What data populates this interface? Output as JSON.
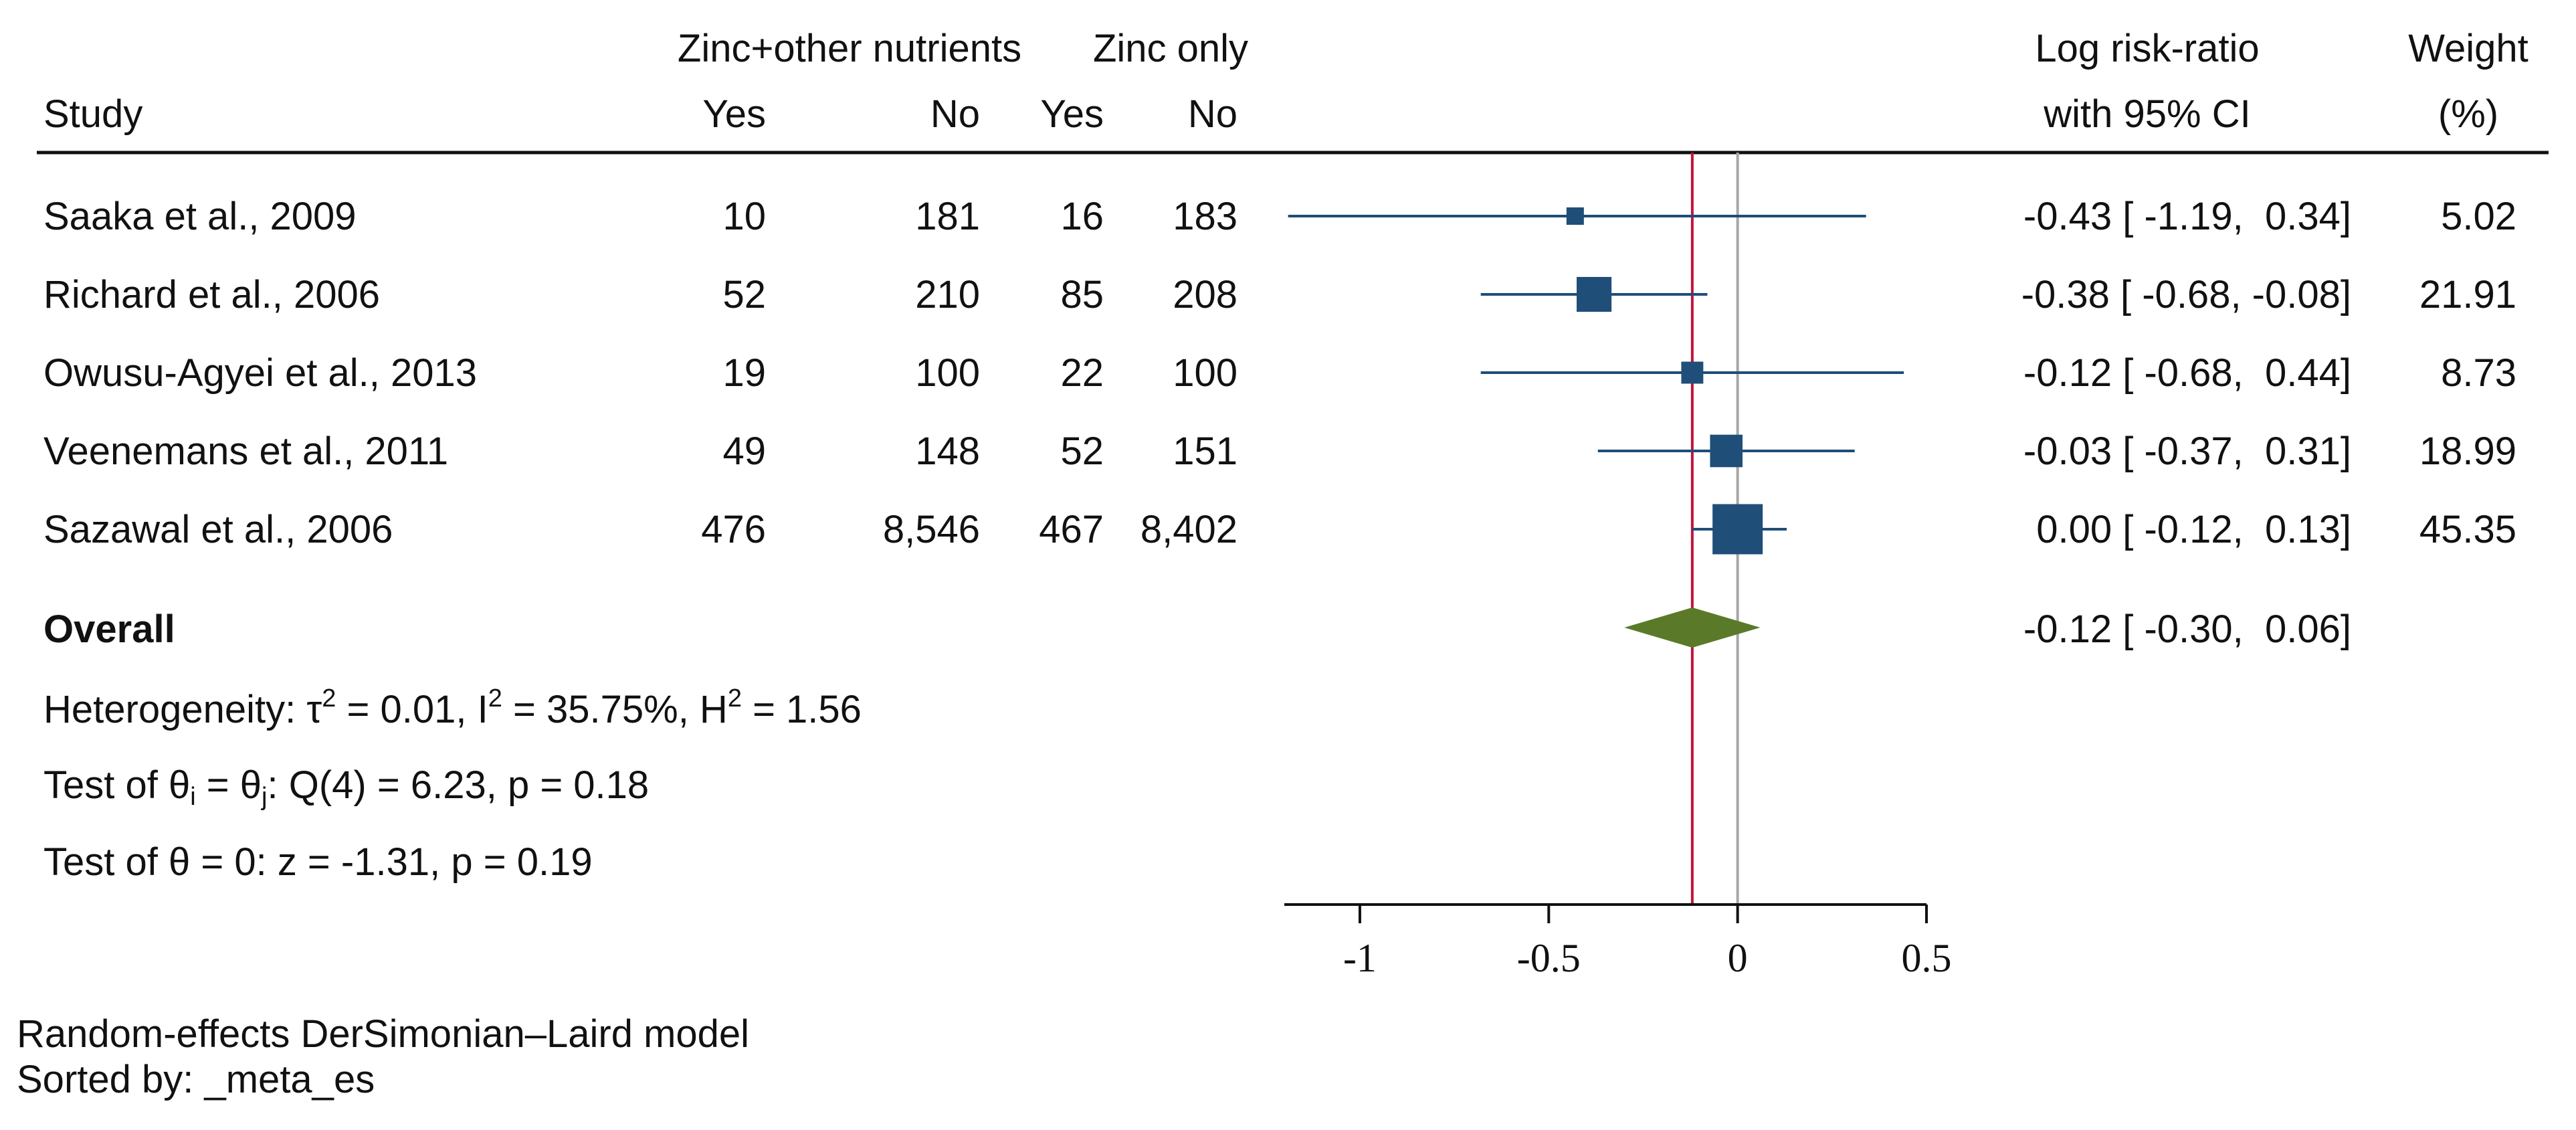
{
  "chart_data": {
    "type": "forest",
    "title": "",
    "column_headers": {
      "study": "Study",
      "group1": "Zinc+other nutrients",
      "group2": "Zinc only",
      "yes": "Yes",
      "no": "No",
      "effect_line1": "Log risk-ratio",
      "effect_line2": "with 95% CI",
      "weight_line1": "Weight",
      "weight_line2": "(%)"
    },
    "studies": [
      {
        "label": "Saaka et al., 2009",
        "t_yes": "10",
        "t_no": "181",
        "c_yes": "16",
        "c_no": "183",
        "est": -0.43,
        "lo": -1.19,
        "hi": 0.34,
        "weight": 5.02,
        "ci_text": "-0.43 [ -1.19,  0.34]",
        "weight_text": "5.02"
      },
      {
        "label": "Richard et al., 2006",
        "t_yes": "52",
        "t_no": "210",
        "c_yes": "85",
        "c_no": "208",
        "est": -0.38,
        "lo": -0.68,
        "hi": -0.08,
        "weight": 21.91,
        "ci_text": "-0.38 [ -0.68, -0.08]",
        "weight_text": "21.91"
      },
      {
        "label": "Owusu-Agyei et al., 2013",
        "t_yes": "19",
        "t_no": "100",
        "c_yes": "22",
        "c_no": "100",
        "est": -0.12,
        "lo": -0.68,
        "hi": 0.44,
        "weight": 8.73,
        "ci_text": "-0.12 [ -0.68,  0.44]",
        "weight_text": "8.73"
      },
      {
        "label": "Veenemans et al., 2011",
        "t_yes": "49",
        "t_no": "148",
        "c_yes": "52",
        "c_no": "151",
        "est": -0.03,
        "lo": -0.37,
        "hi": 0.31,
        "weight": 18.99,
        "ci_text": "-0.03 [ -0.37,  0.31]",
        "weight_text": "18.99"
      },
      {
        "label": "Sazawal et al., 2006",
        "t_yes": "476",
        "t_no": "8,546",
        "c_yes": "467",
        "c_no": "8,402",
        "est": 0.0,
        "lo": -0.12,
        "hi": 0.13,
        "weight": 45.35,
        "ci_text": "0.00 [ -0.12,  0.13]",
        "weight_text": "45.35"
      }
    ],
    "overall": {
      "label": "Overall",
      "est": -0.12,
      "lo": -0.3,
      "hi": 0.06,
      "ci_text": "-0.12 [ -0.30,  0.06]"
    },
    "stats": {
      "heterogeneity_prefix": "Heterogeneity: τ",
      "tau_sup": "2",
      "tau_value": " = 0.01, I",
      "i_sup": "2",
      "i_value": " = 35.75%, H",
      "h_sup": "2",
      "h_value": " = 1.56",
      "test_prefix": "Test of θ",
      "i_sub": "i",
      "test_mid": " = θ",
      "j_sub": "j",
      "test_value": ": Q(4) = 6.23, p = 0.18",
      "test_zero": "Test of θ = 0: z = -1.31, p = 0.19"
    },
    "x_axis": {
      "xlim": [
        -1.2,
        0.5
      ],
      "ticks": [
        -1,
        -0.5,
        0,
        0.5
      ],
      "tick_labels": [
        "-1",
        "-0.5",
        "0",
        "0.5"
      ],
      "xlabel": ""
    },
    "reference_lines": {
      "null_value": 0,
      "overall_value": -0.12
    },
    "footnote": {
      "model": "Random-effects DerSimonian–Laird model",
      "sorted": "Sorted by: _meta_es"
    },
    "colors": {
      "marker": "#1f4e79",
      "ci_line": "#1f4e79",
      "diamond": "#5a7a2a",
      "overall_line": "#c0143c",
      "null_line": "#a6a6a6",
      "text": "#111111"
    }
  }
}
